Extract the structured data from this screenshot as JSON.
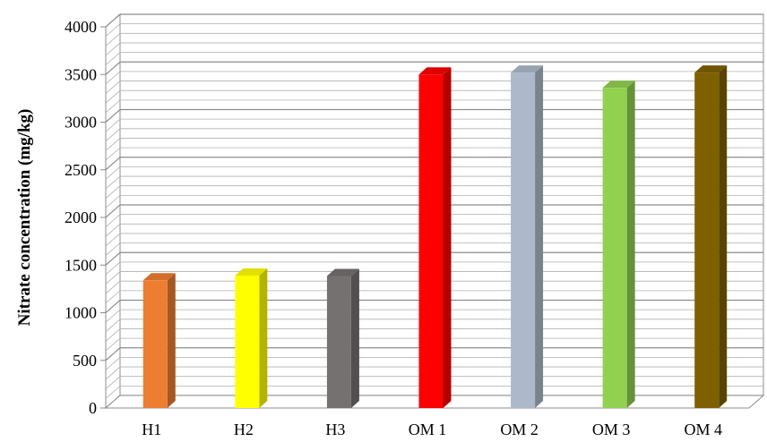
{
  "chart_data": {
    "type": "bar",
    "style": "3d-column",
    "title": "",
    "xlabel": "",
    "ylabel": "Nitrate concentration (mg/kg)",
    "ylim": [
      0,
      4000
    ],
    "yticks": [
      "0",
      "500",
      "1000",
      "1500",
      "2000",
      "2500",
      "3000",
      "3500",
      "4000"
    ],
    "grid": true,
    "legend": "none",
    "categories": [
      "H1",
      "H2",
      "H3",
      "OM 1",
      "OM 2",
      "OM 3",
      "OM 4"
    ],
    "values": [
      1340,
      1390,
      1385,
      3500,
      3520,
      3360,
      3520
    ],
    "colors": [
      "#ED7D31",
      "#FFFF00",
      "#767171",
      "#FF0000",
      "#ADB9CA",
      "#92D050",
      "#7F6000"
    ]
  }
}
